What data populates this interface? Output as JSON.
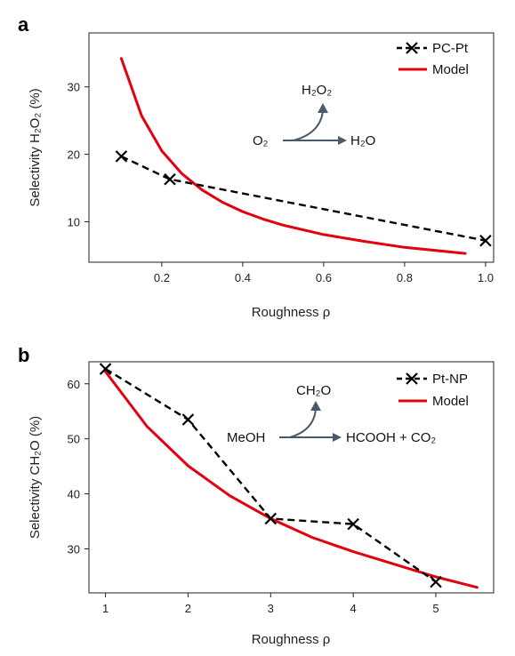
{
  "colors": {
    "model": "#e3000f",
    "experiment": "#000000",
    "arrow": "#4a5a6e",
    "axis": "#222222"
  },
  "chart_data": [
    {
      "panel": "a",
      "type": "line",
      "xlabel": "Roughness ρ",
      "ylabel": "Selectivity H₂O₂ (%)",
      "xlim": [
        0.02,
        1.02
      ],
      "ylim": [
        4,
        38
      ],
      "xticks": [
        0.2,
        0.4,
        0.6,
        0.8,
        1.0
      ],
      "xtick_labels": [
        "0.2",
        "0.4",
        "0.6",
        "0.8",
        "1.0"
      ],
      "yticks": [
        10,
        20,
        30
      ],
      "ytick_labels": [
        "10",
        "20",
        "30"
      ],
      "legend_position": "top-right",
      "series": [
        {
          "name": "PC-Pt",
          "style": "dashed-x",
          "x": [
            0.1,
            0.22,
            1.0
          ],
          "y": [
            19.7,
            16.3,
            7.2
          ]
        },
        {
          "name": "Model",
          "style": "solid",
          "x": [
            0.1,
            0.15,
            0.2,
            0.25,
            0.3,
            0.35,
            0.4,
            0.45,
            0.5,
            0.6,
            0.7,
            0.8,
            0.95
          ],
          "y": [
            34.2,
            25.7,
            20.5,
            17.1,
            14.7,
            12.9,
            11.5,
            10.4,
            9.5,
            8.1,
            7.1,
            6.2,
            5.3
          ]
        }
      ],
      "reaction": {
        "reactant": "O₂",
        "product_main": "H₂O",
        "product_branch": "H₂O₂"
      }
    },
    {
      "panel": "b",
      "type": "line",
      "xlabel": "Roughness ρ",
      "ylabel": "Selectivity CH₂O (%)",
      "xlim": [
        0.8,
        5.7
      ],
      "ylim": [
        22,
        64
      ],
      "xticks": [
        1,
        2,
        3,
        4,
        5
      ],
      "xtick_labels": [
        "1",
        "2",
        "3",
        "4",
        "5"
      ],
      "yticks": [
        30,
        40,
        50,
        60
      ],
      "ytick_labels": [
        "30",
        "40",
        "50",
        "60"
      ],
      "legend_position": "top-right",
      "series": [
        {
          "name": "Pt-NP",
          "style": "dashed-x",
          "x": [
            1,
            2,
            3,
            4,
            5
          ],
          "y": [
            62.7,
            53.5,
            35.5,
            34.5,
            24.0
          ]
        },
        {
          "name": "Model",
          "style": "solid",
          "x": [
            1,
            1.5,
            2,
            2.5,
            3,
            3.5,
            4,
            4.5,
            5,
            5.5
          ],
          "y": [
            62.2,
            52.3,
            45.1,
            39.7,
            35.5,
            32.1,
            29.5,
            27.2,
            24.9,
            23.0
          ]
        }
      ],
      "reaction": {
        "reactant": "MeOH",
        "product_main": "HCOOH + CO₂",
        "product_branch": "CH₂O"
      }
    }
  ]
}
